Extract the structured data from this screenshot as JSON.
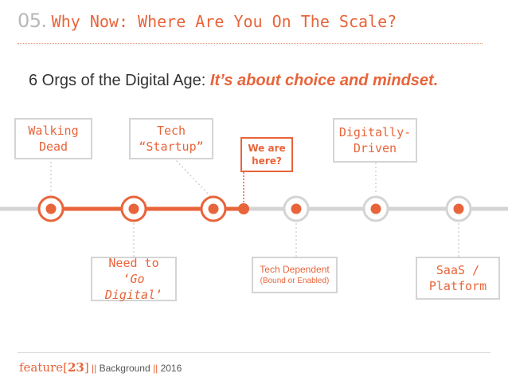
{
  "title": {
    "number": "05.",
    "text": "Why Now: Where Are You On The Scale?"
  },
  "subtitle": {
    "plain": "6 Orgs of the Digital Age: ",
    "emphasis": "It’s about choice and mindset."
  },
  "stages": {
    "walking_dead": {
      "line1": "Walking",
      "line2": "Dead"
    },
    "need_digital": {
      "line1": "Need to",
      "line2_q1": "‘",
      "line2_em": "Go Digital",
      "line2_q2": "’"
    },
    "tech_startup": {
      "line1": "Tech",
      "line2": "“Startup”"
    },
    "tech_dependent": {
      "line1": "Tech Dependent",
      "line2": "(Bound or Enabled)"
    },
    "digitally_driven": {
      "line1": "Digitally-",
      "line2": "Driven"
    },
    "saas_platform": {
      "line1": "SaaS /",
      "line2": "Platform"
    }
  },
  "marker": {
    "line1": "We are",
    "line2": "here?"
  },
  "footer": {
    "brand_prefix": "feature",
    "brand_open": "[",
    "brand_num": "23",
    "brand_close": "]",
    "sep1": " || ",
    "label": "Background",
    "sep2": " || ",
    "year": "2016"
  },
  "colors": {
    "accent": "#e8643a",
    "track": "#d4d4d4",
    "muted": "#b8b8b8"
  }
}
